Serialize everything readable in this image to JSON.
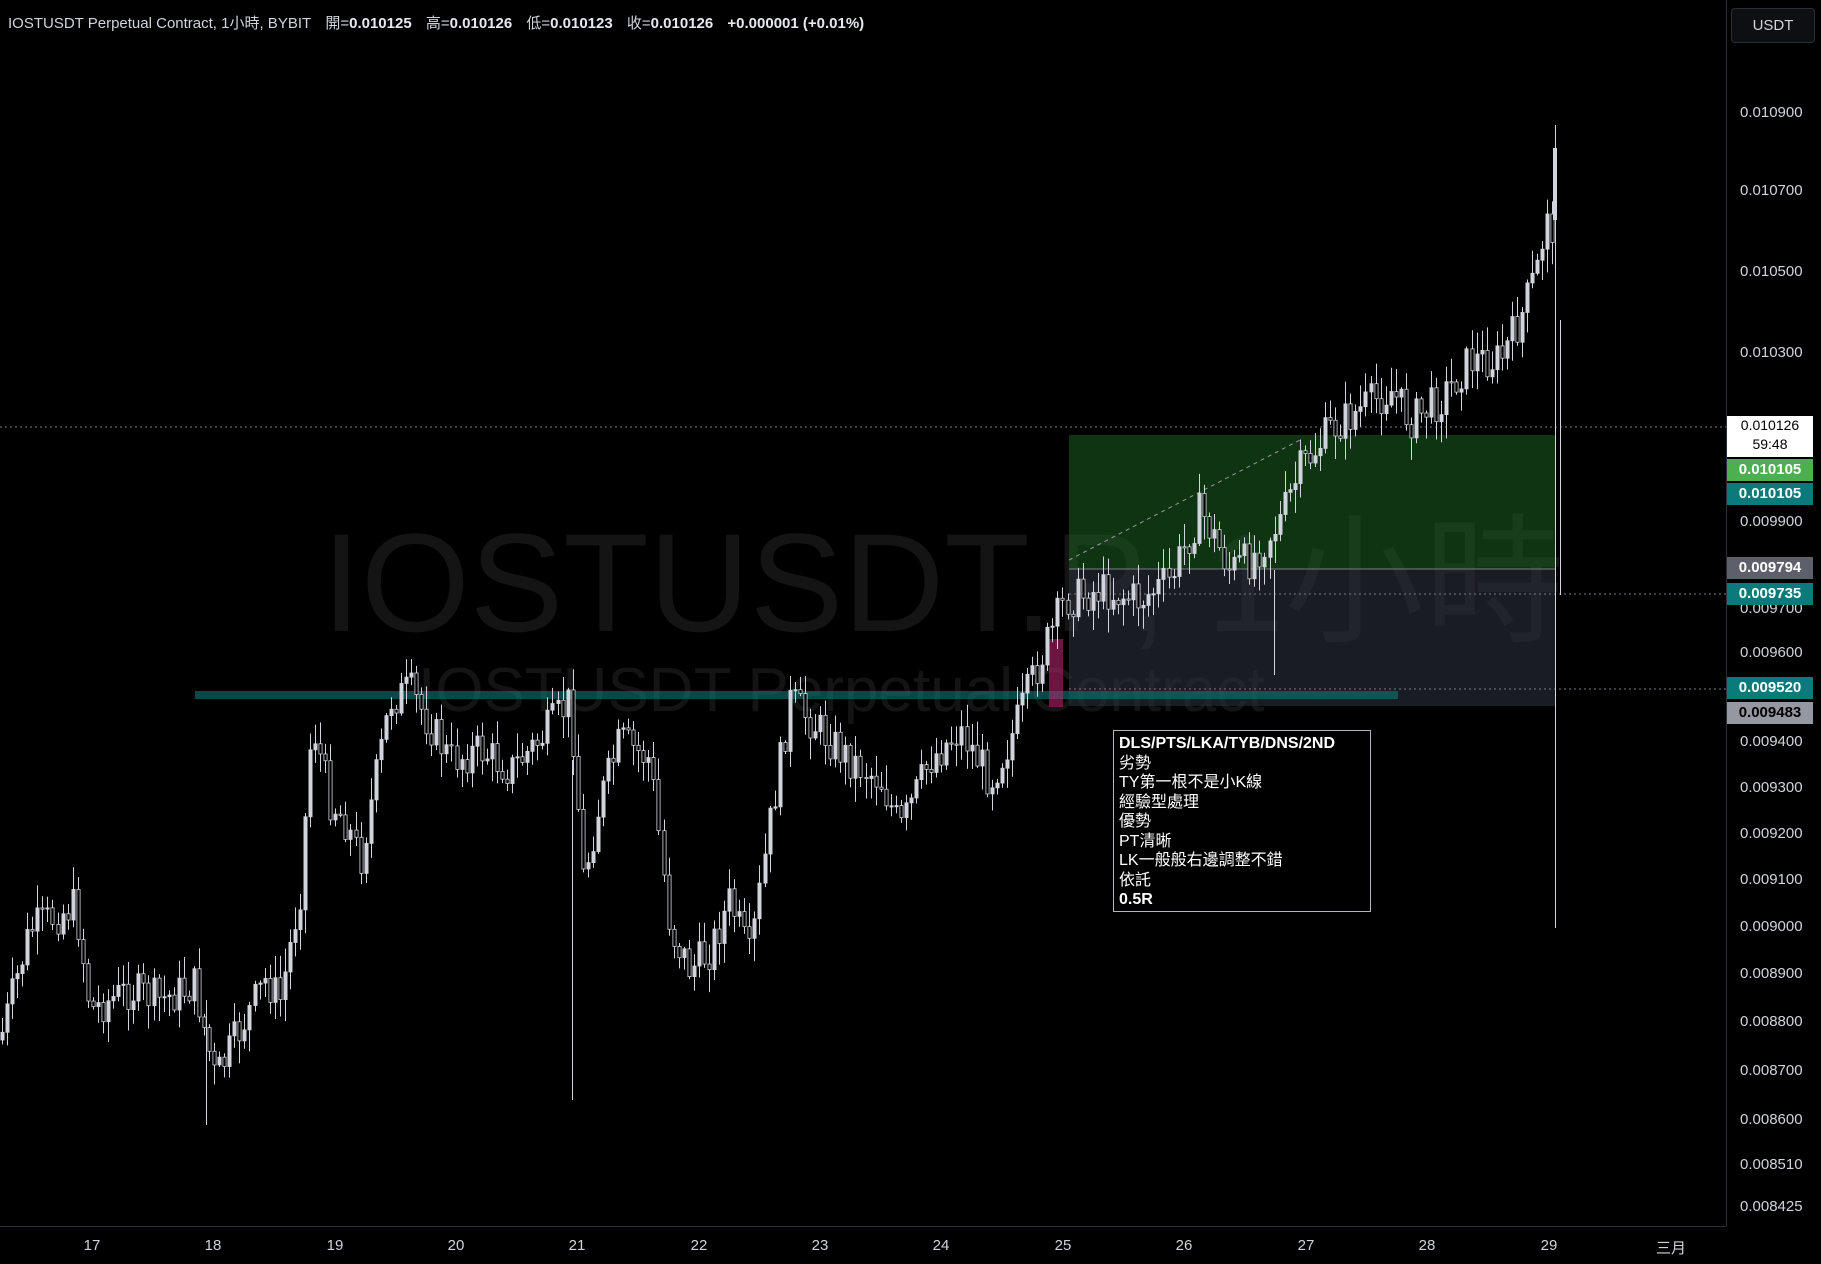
{
  "header": {
    "symbol": "IOSTUSDT Perpetual Contract, 1小時, BYBIT",
    "open_label": "開=",
    "open": "0.010125",
    "high_label": "高=",
    "high": "0.010126",
    "low_label": "低=",
    "low": "0.010123",
    "close_label": "收=",
    "close": "0.010126",
    "change": "+0.000001 (+0.01%)"
  },
  "currency_button": "USDT",
  "watermark": {
    "title": "IOSTUSDT.P, 1小時",
    "subtitle": "IOSTUSDT Perpetual Contract"
  },
  "price_axis": [
    "0.010900",
    "0.010700",
    "0.010500",
    "0.010300",
    "0.009900",
    "0.009700",
    "0.009600",
    "0.009400",
    "0.009300",
    "0.009200",
    "0.009100",
    "0.009000",
    "0.008900",
    "0.008800",
    "0.008700",
    "0.008600",
    "0.008510",
    "0.008425"
  ],
  "time_axis": [
    "17",
    "18",
    "19",
    "20",
    "21",
    "22",
    "23",
    "24",
    "25",
    "26",
    "27",
    "28",
    "29",
    "三月"
  ],
  "price_labels": {
    "last_price": "0.010126",
    "countdown": "59:48",
    "target_1": "0.010105",
    "target_2": "0.010105",
    "entry": "0.009794",
    "current_line": "0.009735",
    "support": "0.009520",
    "stop": "0.009483"
  },
  "colors": {
    "target_1": "#4caf50",
    "target_2": "#0b7a7a",
    "entry": "#5d606b",
    "current_line": "#0b7a7a",
    "support": "#0b7a7a",
    "stop": "#9598a1",
    "profit_zone": "#1b5e20",
    "loss_zone": "#2a2e39",
    "candle": "#d1d4dc"
  },
  "note": [
    "DLS/PTS/LKA/TYB/DNS/2ND",
    "劣勢",
    "TY第一根不是小K線",
    "經驗型處理",
    "優勢",
    "PT清晰",
    "LK一般般右邊調整不錯",
    "依託",
    "0.5R"
  ]
}
